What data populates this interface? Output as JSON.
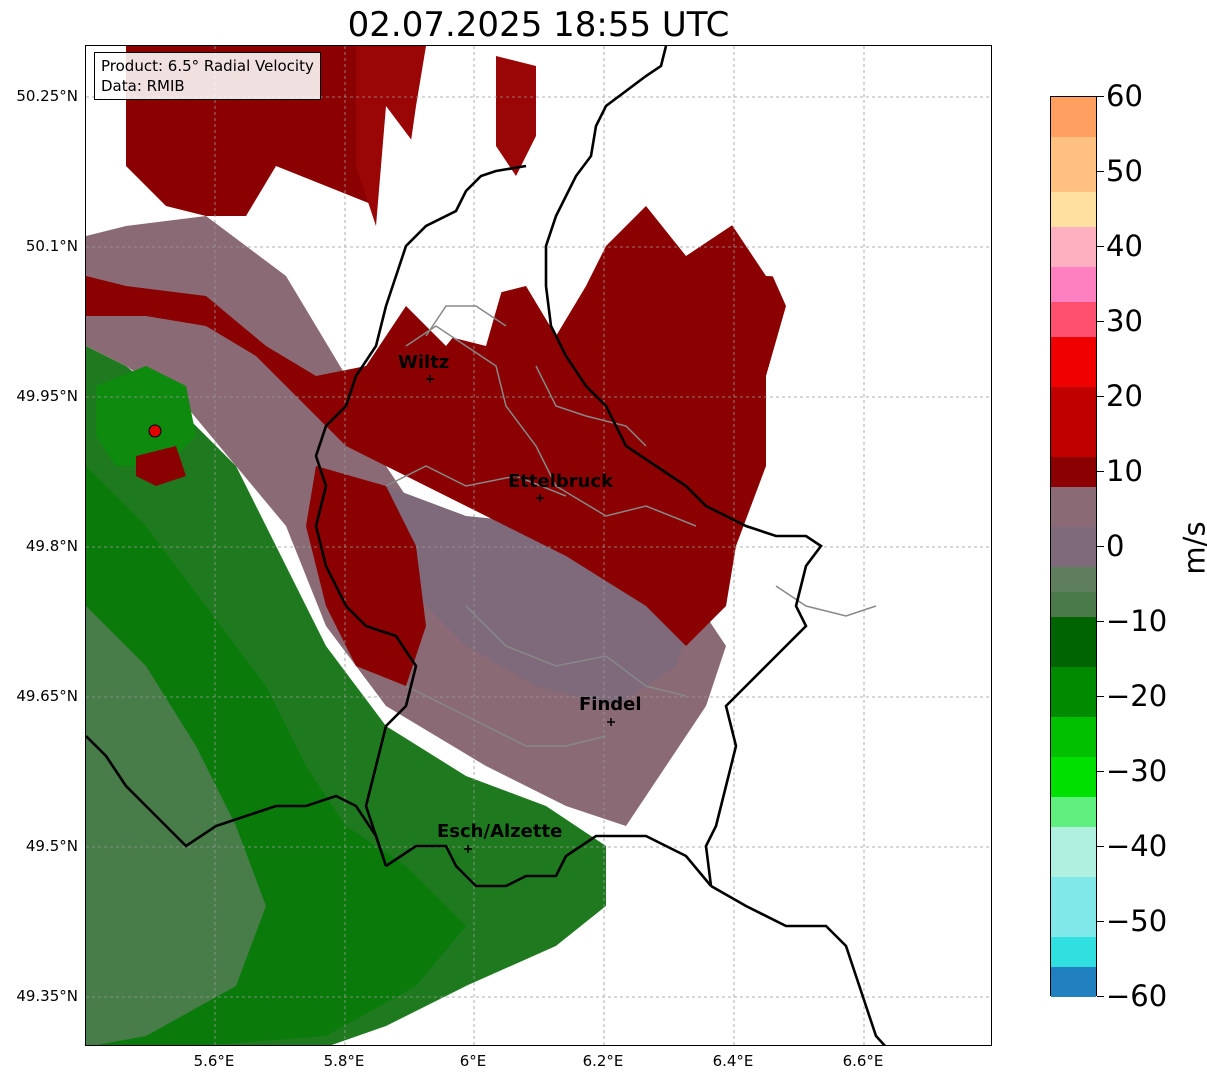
{
  "title": "02.07.2025 18:55 UTC",
  "info": {
    "product": "Product: 6.5° Radial Velocity",
    "data": "Data: RMIB"
  },
  "map": {
    "lat_labels": [
      "50.25°N",
      "50.1°N",
      "49.95°N",
      "49.8°N",
      "49.65°N",
      "49.5°N",
      "49.35°N"
    ],
    "lon_labels": [
      "5.6°E",
      "5.8°E",
      "6°E",
      "6.2°E",
      "6.4°E",
      "6.6°E"
    ],
    "cities": [
      {
        "name": "Wiltz"
      },
      {
        "name": "Ettelbruck"
      },
      {
        "name": "Findel"
      },
      {
        "name": "Esch/Alzette"
      }
    ],
    "radar_marker": "radar-site-marker"
  },
  "colorbar": {
    "unit": "m/s",
    "ticks": [
      "60",
      "50",
      "40",
      "30",
      "20",
      "10",
      "0",
      "−10",
      "−20",
      "−30",
      "−40",
      "−50",
      "−60"
    ],
    "range": [
      -60,
      60
    ],
    "colors": {
      "approaching_dark": "#006400",
      "approaching_mid": "#008a00",
      "approaching_light": "#00e000",
      "neutral_green": "#5e7e5e",
      "neutral_pink": "#8a6a74",
      "receding_dark": "#8b0000",
      "receding_red": "#e00000",
      "pink": "#ff80c0",
      "orange": "#ffa060",
      "cyan": "#30e0e0",
      "blue": "#2080c0"
    }
  }
}
